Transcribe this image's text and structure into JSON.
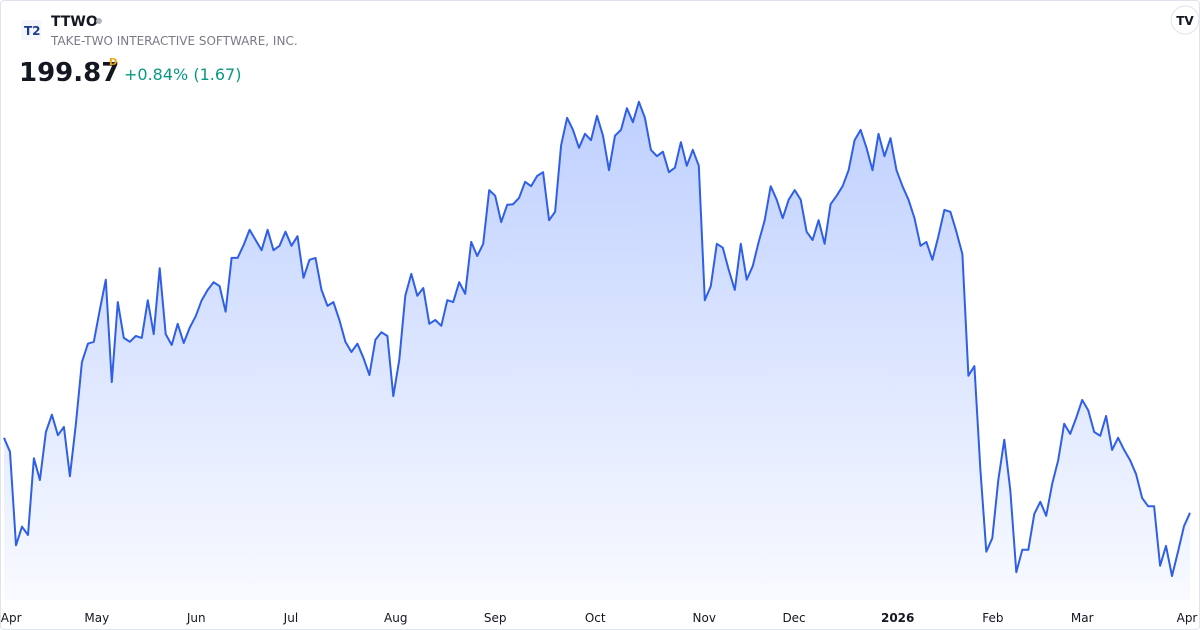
{
  "header": {
    "symbol": "TTWO",
    "company": "TAKE-TWO INTERACTIVE SOFTWARE, INC.",
    "price": "199.87",
    "price_flag": "D",
    "change": "+0.84% (1.67)"
  },
  "chart_data": {
    "type": "area",
    "color": "#2f5fe6",
    "values": [
      211.6,
      209.4,
      194.8,
      197.7,
      196.4,
      208.4,
      205,
      212.5,
      215.2,
      212,
      213.3,
      205.6,
      213.8,
      223.4,
      226.3,
      226.6,
      231.6,
      236.3,
      220.3,
      232.8,
      227.2,
      226.6,
      227.5,
      227.2,
      233.1,
      227.8,
      238.1,
      227.8,
      226.1,
      229.4,
      226.4,
      228.8,
      230.6,
      233.1,
      234.7,
      235.9,
      235.3,
      231.3,
      239.7,
      239.7,
      241.7,
      244.1,
      242.5,
      240.9,
      244.1,
      240.9,
      241.6,
      243.8,
      241.6,
      243.1,
      236.6,
      239.4,
      239.7,
      234.7,
      232.2,
      232.8,
      230,
      226.6,
      225,
      226.3,
      224.1,
      221.4,
      226.9,
      228.1,
      227.5,
      218.1,
      223.8,
      233.8,
      237.2,
      233.8,
      235,
      229.4,
      230,
      229.1,
      233.1,
      232.8,
      235.9,
      234.1,
      242.2,
      240,
      241.9,
      250.3,
      249.4,
      245.3,
      248,
      248.1,
      249.1,
      251.6,
      250.9,
      252.5,
      253.1,
      245.6,
      246.9,
      257.3,
      261.6,
      259.7,
      256.9,
      259.1,
      258.1,
      261.9,
      258.8,
      253.4,
      258.8,
      259.7,
      263.1,
      260.9,
      264.1,
      261.6,
      256.6,
      255.6,
      256.3,
      253.1,
      253.8,
      257.8,
      254.1,
      256.6,
      254.1,
      233.1,
      235.3,
      241.9,
      241.3,
      237.8,
      234.7,
      241.9,
      236.3,
      238.4,
      242.2,
      245.6,
      250.9,
      248.8,
      245.9,
      248.8,
      250.3,
      248.8,
      243.8,
      242.5,
      245.6,
      241.9,
      248.1,
      249.4,
      250.9,
      253.4,
      258.1,
      259.7,
      256.9,
      253.4,
      259.1,
      255.6,
      258.4,
      253.4,
      250.9,
      248.8,
      245.9,
      241.6,
      242.2,
      239.4,
      243.1,
      247.2,
      246.9,
      243.8,
      240.3,
      221.3,
      222.8,
      206.6,
      193.8,
      195.9,
      205,
      211.3,
      203.4,
      190.6,
      194.1,
      194.1,
      199.7,
      201.6,
      199.4,
      204.4,
      208.1,
      213.8,
      212.2,
      214.7,
      217.5,
      215.9,
      212.5,
      211.9,
      215,
      209.7,
      211.6,
      209.7,
      208.1,
      205.9,
      202.2,
      200.9,
      200.9,
      191.6,
      194.7,
      190,
      193.8,
      197.8,
      199.87
    ],
    "ylim": [
      186,
      280
    ],
    "xlim": [
      0,
      198
    ],
    "xticks": [
      {
        "value": 1.2,
        "label": "Apr"
      },
      {
        "value": 15.5,
        "label": "May"
      },
      {
        "value": 32.1,
        "label": "Jun"
      },
      {
        "value": 47.9,
        "label": "Jul"
      },
      {
        "value": 65.4,
        "label": "Aug"
      },
      {
        "value": 82,
        "label": "Sep"
      },
      {
        "value": 98.7,
        "label": "Oct"
      },
      {
        "value": 116.9,
        "label": "Nov"
      },
      {
        "value": 131.9,
        "label": "Dec"
      },
      {
        "value": 149.2,
        "label": "2026",
        "bold": true
      },
      {
        "value": 165.1,
        "label": "Feb"
      },
      {
        "value": 180,
        "label": "Mar"
      },
      {
        "value": 197.5,
        "label": "Apr"
      }
    ]
  }
}
